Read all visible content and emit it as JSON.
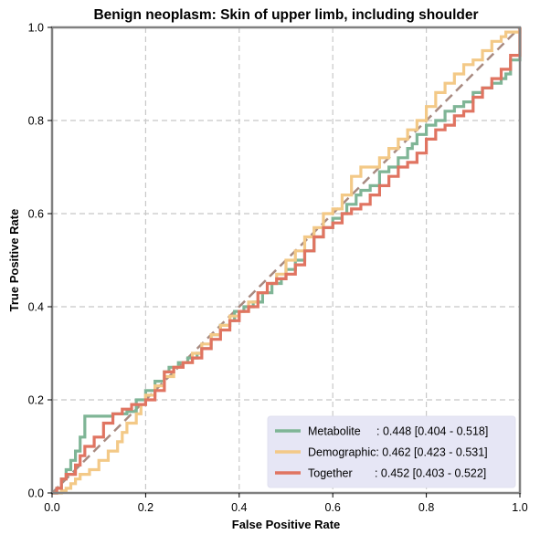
{
  "chart_data": {
    "type": "line",
    "title": "Benign neoplasm: Skin of upper limb, including shoulder",
    "xlabel": "False Positive Rate",
    "ylabel": "True Positive Rate",
    "xlim": [
      0,
      1
    ],
    "ylim": [
      0,
      1
    ],
    "xticks": [
      "0.0",
      "0.2",
      "0.4",
      "0.6",
      "0.8",
      "1.0"
    ],
    "yticks": [
      "0.0",
      "0.2",
      "0.4",
      "0.6",
      "0.8",
      "1.0"
    ],
    "grid": true,
    "legend_position": "lower-right",
    "diagonal": {
      "x": [
        0,
        1
      ],
      "y": [
        0,
        1
      ],
      "color": "#a88a80",
      "style": "dashed"
    },
    "series": [
      {
        "name": "Metabolite",
        "legend_label": "Metabolite     : 0.448 [0.404 - 0.518]",
        "color": "#7fb596",
        "x": [
          0,
          0.01,
          0.02,
          0.03,
          0.04,
          0.05,
          0.06,
          0.07,
          0.07,
          0.09,
          0.12,
          0.13,
          0.14,
          0.16,
          0.18,
          0.18,
          0.2,
          0.22,
          0.24,
          0.25,
          0.27,
          0.29,
          0.31,
          0.32,
          0.34,
          0.36,
          0.38,
          0.39,
          0.41,
          0.43,
          0.45,
          0.47,
          0.49,
          0.5,
          0.52,
          0.54,
          0.56,
          0.58,
          0.6,
          0.6,
          0.62,
          0.63,
          0.65,
          0.66,
          0.68,
          0.7,
          0.72,
          0.74,
          0.76,
          0.77,
          0.78,
          0.8,
          0.82,
          0.84,
          0.86,
          0.88,
          0.9,
          0.92,
          0.94,
          0.96,
          0.97,
          0.98,
          1.0
        ],
        "y": [
          0,
          0.01,
          0.03,
          0.05,
          0.07,
          0.09,
          0.12,
          0.15,
          0.165,
          0.165,
          0.165,
          0.17,
          0.17,
          0.175,
          0.19,
          0.2,
          0.22,
          0.24,
          0.26,
          0.27,
          0.28,
          0.29,
          0.3,
          0.31,
          0.34,
          0.36,
          0.37,
          0.39,
          0.4,
          0.41,
          0.43,
          0.45,
          0.46,
          0.48,
          0.5,
          0.52,
          0.55,
          0.57,
          0.58,
          0.59,
          0.6,
          0.62,
          0.64,
          0.65,
          0.66,
          0.69,
          0.7,
          0.72,
          0.74,
          0.75,
          0.77,
          0.79,
          0.8,
          0.82,
          0.83,
          0.84,
          0.86,
          0.87,
          0.88,
          0.89,
          0.9,
          0.93,
          1.0
        ]
      },
      {
        "name": "Demographic",
        "legend_label": "Demographic: 0.462 [0.423 - 0.531]",
        "color": "#f3c987",
        "x": [
          0,
          0.02,
          0.03,
          0.04,
          0.05,
          0.06,
          0.08,
          0.1,
          0.12,
          0.14,
          0.15,
          0.16,
          0.18,
          0.19,
          0.2,
          0.22,
          0.24,
          0.26,
          0.28,
          0.3,
          0.32,
          0.34,
          0.36,
          0.38,
          0.4,
          0.42,
          0.44,
          0.46,
          0.48,
          0.5,
          0.52,
          0.54,
          0.56,
          0.58,
          0.6,
          0.62,
          0.64,
          0.66,
          0.68,
          0.7,
          0.72,
          0.74,
          0.76,
          0.78,
          0.8,
          0.82,
          0.84,
          0.86,
          0.88,
          0.9,
          0.92,
          0.94,
          0.96,
          0.97,
          0.99,
          1.0
        ],
        "y": [
          0,
          0.005,
          0.01,
          0.02,
          0.03,
          0.04,
          0.05,
          0.07,
          0.09,
          0.11,
          0.13,
          0.15,
          0.17,
          0.19,
          0.21,
          0.23,
          0.25,
          0.27,
          0.28,
          0.3,
          0.32,
          0.34,
          0.36,
          0.38,
          0.39,
          0.41,
          0.43,
          0.45,
          0.47,
          0.5,
          0.52,
          0.55,
          0.57,
          0.6,
          0.61,
          0.64,
          0.68,
          0.7,
          0.7,
          0.72,
          0.74,
          0.76,
          0.78,
          0.8,
          0.83,
          0.86,
          0.88,
          0.9,
          0.92,
          0.93,
          0.95,
          0.97,
          0.98,
          0.99,
          0.99,
          1.0
        ]
      },
      {
        "name": "Together",
        "legend_label": "Together       : 0.452 [0.403 - 0.522]",
        "color": "#e07461",
        "x": [
          0,
          0.01,
          0.02,
          0.03,
          0.05,
          0.06,
          0.07,
          0.09,
          0.11,
          0.13,
          0.15,
          0.17,
          0.19,
          0.2,
          0.22,
          0.24,
          0.26,
          0.28,
          0.3,
          0.32,
          0.34,
          0.36,
          0.38,
          0.4,
          0.42,
          0.44,
          0.46,
          0.48,
          0.5,
          0.52,
          0.54,
          0.56,
          0.58,
          0.6,
          0.62,
          0.64,
          0.66,
          0.68,
          0.7,
          0.72,
          0.74,
          0.76,
          0.78,
          0.8,
          0.82,
          0.84,
          0.86,
          0.88,
          0.9,
          0.92,
          0.94,
          0.96,
          0.98,
          1.0
        ],
        "y": [
          0,
          0.01,
          0.03,
          0.04,
          0.06,
          0.08,
          0.1,
          0.12,
          0.15,
          0.17,
          0.18,
          0.19,
          0.19,
          0.2,
          0.22,
          0.26,
          0.27,
          0.28,
          0.29,
          0.31,
          0.33,
          0.35,
          0.37,
          0.39,
          0.4,
          0.43,
          0.45,
          0.46,
          0.47,
          0.49,
          0.52,
          0.55,
          0.57,
          0.58,
          0.6,
          0.61,
          0.62,
          0.64,
          0.66,
          0.68,
          0.7,
          0.71,
          0.73,
          0.76,
          0.78,
          0.79,
          0.81,
          0.82,
          0.85,
          0.87,
          0.89,
          0.91,
          0.94,
          1.0
        ]
      }
    ]
  }
}
